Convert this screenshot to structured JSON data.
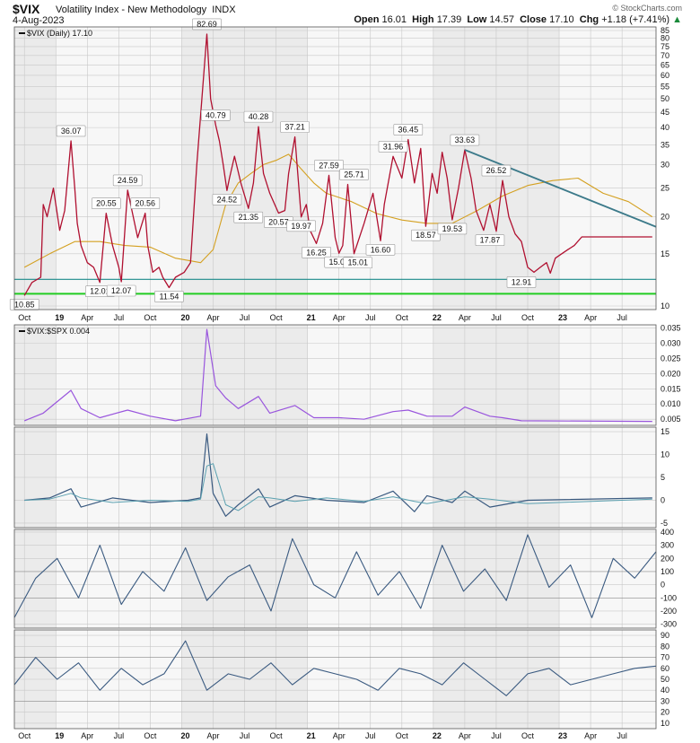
{
  "header": {
    "symbol": "$VIX",
    "name": "Volatility Index - New Methodology",
    "exchange": "INDX",
    "date": "4-Aug-2023",
    "open_label": "Open",
    "open": "16.01",
    "high_label": "High",
    "high": "17.39",
    "low_label": "Low",
    "low": "14.57",
    "close_label": "Close",
    "close": "17.10",
    "chg_label": "Chg",
    "chg": "+1.18 (+7.41%)",
    "watermark": "© StockCharts.com"
  },
  "colors": {
    "price": "#b01030",
    "ma": "#d4a020",
    "support": "#22cc22",
    "baseline": "#1a8a8a",
    "trend": "#3c7a8a",
    "ratio": "#9955dd",
    "osc": "#3a5a80",
    "osc2": "#5aa0b0",
    "grid": "#c8c8c8",
    "band": "#ebebeb"
  },
  "chart_data": [
    {
      "type": "line",
      "panel": "price",
      "legend": "$VIX (Daily) 17.10",
      "y_scale": "log",
      "ylim": [
        10,
        85
      ],
      "y_ticks": [
        10,
        15,
        20,
        25,
        30,
        35,
        40,
        45,
        50,
        55,
        60,
        65,
        70,
        75,
        80,
        85
      ],
      "series": [
        {
          "role": "price",
          "x": [
            2018.6,
            2018.66,
            2018.73,
            2018.75,
            2018.78,
            2018.83,
            2018.88,
            2018.92,
            2018.97,
            2019.0,
            2019.02,
            2019.05,
            2019.1,
            2019.15,
            2019.2,
            2019.25,
            2019.3,
            2019.35,
            2019.37,
            2019.42,
            2019.5,
            2019.56,
            2019.58,
            2019.62,
            2019.67,
            2019.7,
            2019.75,
            2019.8,
            2019.87,
            2019.92,
            2019.97,
            2020.05,
            2020.08,
            2020.12,
            2020.15,
            2020.18,
            2020.21,
            2020.23,
            2020.27,
            2020.32,
            2020.38,
            2020.42,
            2020.46,
            2020.5,
            2020.55,
            2020.62,
            2020.67,
            2020.7,
            2020.75,
            2020.8,
            2020.84,
            2020.87,
            2020.92,
            2020.97,
            2021.02,
            2021.07,
            2021.1,
            2021.13,
            2021.17,
            2021.22,
            2021.3,
            2021.37,
            2021.43,
            2021.46,
            2021.53,
            2021.6,
            2021.65,
            2021.7,
            2021.75,
            2021.79,
            2021.84,
            2021.88,
            2021.92,
            2021.96,
            2022.0,
            2022.05,
            2022.1,
            2022.15,
            2022.19,
            2022.25,
            2022.3,
            2022.35,
            2022.4,
            2022.45,
            2022.5,
            2022.55,
            2022.6,
            2022.65,
            2022.7,
            2022.75,
            2022.78,
            2022.82,
            2022.87,
            2022.92,
            2022.97,
            2023.03,
            2023.1,
            2023.17,
            2023.2,
            2023.25,
            2023.3,
            2023.38,
            2023.45,
            2023.5,
            2023.55,
            2023.59
          ],
          "values": [
            10.85,
            12.0,
            12.5,
            22.0,
            20.0,
            25.0,
            18.0,
            21.0,
            36.07,
            25.0,
            19.0,
            16.0,
            14.0,
            13.5,
            12.01,
            20.55,
            16.0,
            13.5,
            12.07,
            24.59,
            17.0,
            20.56,
            16.0,
            13.0,
            13.5,
            12.5,
            11.54,
            12.5,
            13.0,
            14.0,
            30.0,
            82.69,
            50.0,
            40.79,
            36.0,
            30.0,
            24.52,
            27.0,
            32.0,
            26.0,
            21.35,
            26.0,
            40.28,
            28.0,
            24.0,
            20.57,
            21.0,
            28.0,
            37.21,
            19.97,
            22.0,
            18.0,
            16.25,
            19.0,
            27.59,
            17.0,
            15.07,
            16.0,
            25.71,
            15.01,
            19.0,
            24.0,
            16.6,
            22.0,
            31.96,
            27.0,
            36.45,
            26.0,
            34.0,
            18.57,
            28.0,
            24.0,
            33.0,
            27.0,
            19.53,
            25.0,
            33.63,
            27.0,
            21.0,
            18.0,
            22.0,
            17.87,
            26.52,
            20.0,
            17.5,
            16.5,
            13.5,
            13.0,
            13.5,
            14.0,
            12.91,
            14.5,
            15.0,
            15.5,
            16.0,
            17.1,
            17.1,
            17.1,
            17.1,
            17.1,
            17.1,
            17.1,
            17.1,
            17.1,
            17.1,
            17.1
          ]
        },
        {
          "role": "moving-average",
          "x": [
            2018.6,
            2018.8,
            2019.0,
            2019.2,
            2019.4,
            2019.6,
            2019.8,
            2020.0,
            2020.1,
            2020.2,
            2020.3,
            2020.4,
            2020.5,
            2020.6,
            2020.7,
            2020.8,
            2020.9,
            2021.0,
            2021.2,
            2021.4,
            2021.6,
            2021.8,
            2022.0,
            2022.2,
            2022.4,
            2022.6,
            2022.8,
            2023.0,
            2023.2,
            2023.4,
            2023.59
          ],
          "values": [
            13.5,
            15.0,
            16.5,
            16.5,
            16.0,
            15.8,
            14.5,
            14.0,
            15.5,
            22.0,
            26.0,
            28.0,
            30.0,
            31.0,
            32.5,
            29.0,
            26.0,
            24.0,
            22.5,
            20.5,
            19.5,
            19.0,
            19.0,
            21.0,
            23.5,
            25.5,
            26.5,
            27.0,
            24.0,
            22.5,
            20.0
          ]
        }
      ],
      "annotations": [
        {
          "x": 2018.6,
          "value": "10.85",
          "pos": "below"
        },
        {
          "x": 2018.97,
          "value": "36.07",
          "pos": "above"
        },
        {
          "x": 2019.2,
          "value": "12.01",
          "pos": "below"
        },
        {
          "x": 2019.25,
          "value": "20.55",
          "pos": "above"
        },
        {
          "x": 2019.37,
          "value": "12.07",
          "pos": "below"
        },
        {
          "x": 2019.42,
          "value": "24.59",
          "pos": "above"
        },
        {
          "x": 2019.56,
          "value": "20.56",
          "pos": "above"
        },
        {
          "x": 2019.75,
          "value": "11.54",
          "pos": "below"
        },
        {
          "x": 2020.05,
          "value": "82.69",
          "pos": "above"
        },
        {
          "x": 2020.12,
          "value": "40.79",
          "pos": "above"
        },
        {
          "x": 2020.21,
          "value": "24.52",
          "pos": "below"
        },
        {
          "x": 2020.38,
          "value": "21.35",
          "pos": "below"
        },
        {
          "x": 2020.46,
          "value": "40.28",
          "pos": "above"
        },
        {
          "x": 2020.62,
          "value": "20.57",
          "pos": "below"
        },
        {
          "x": 2020.75,
          "value": "37.21",
          "pos": "above"
        },
        {
          "x": 2020.8,
          "value": "19.97",
          "pos": "below"
        },
        {
          "x": 2020.92,
          "value": "16.25",
          "pos": "below"
        },
        {
          "x": 2021.02,
          "value": "27.59",
          "pos": "above"
        },
        {
          "x": 2021.1,
          "value": "15.07",
          "pos": "below"
        },
        {
          "x": 2021.22,
          "value": "25.71",
          "pos": "above"
        },
        {
          "x": 2021.25,
          "value": "15.01",
          "pos": "below"
        },
        {
          "x": 2021.43,
          "value": "16.60",
          "pos": "below"
        },
        {
          "x": 2021.53,
          "value": "31.96",
          "pos": "above"
        },
        {
          "x": 2021.65,
          "value": "36.45",
          "pos": "above"
        },
        {
          "x": 2021.79,
          "value": "18.57",
          "pos": "below"
        },
        {
          "x": 2022.0,
          "value": "19.53",
          "pos": "below"
        },
        {
          "x": 2022.1,
          "value": "33.63",
          "pos": "above"
        },
        {
          "x": 2022.3,
          "value": "17.87",
          "pos": "below"
        },
        {
          "x": 2022.35,
          "value": "26.52",
          "pos": "above"
        },
        {
          "x": 2022.55,
          "value": "12.91",
          "pos": "below"
        }
      ],
      "x_ticks": [
        "Oct",
        "19",
        "Apr",
        "Jul",
        "Oct",
        "20",
        "Apr",
        "Jul",
        "Oct",
        "21",
        "Apr",
        "Jul",
        "Oct",
        "22",
        "Apr",
        "Jul",
        "Oct",
        "23",
        "Apr",
        "Jul"
      ],
      "x_tick_pos": [
        2018.6,
        2018.85,
        2019.1,
        2019.35,
        2019.6,
        2019.85,
        2020.1,
        2020.35,
        2020.6,
        2020.85,
        2021.1,
        2021.35,
        2021.6,
        2021.85,
        2022.1,
        2022.35,
        2022.6,
        2022.85,
        2023.1,
        2023.35
      ],
      "x_range": [
        2018.52,
        2023.62
      ]
    },
    {
      "type": "line",
      "panel": "ratio",
      "legend": "$VIX:$SPX 0.004",
      "ylim": [
        0.003,
        0.036
      ],
      "y_ticks": [
        0.005,
        0.01,
        0.015,
        0.02,
        0.025,
        0.03,
        0.035
      ],
      "x": [
        2018.6,
        2018.75,
        2018.97,
        2019.05,
        2019.2,
        2019.42,
        2019.6,
        2019.8,
        2020.0,
        2020.05,
        2020.12,
        2020.2,
        2020.3,
        2020.46,
        2020.55,
        2020.75,
        2020.9,
        2021.1,
        2021.3,
        2021.53,
        2021.65,
        2021.8,
        2022.0,
        2022.1,
        2022.3,
        2022.4,
        2022.55,
        2023.59
      ],
      "values": [
        0.0045,
        0.007,
        0.0145,
        0.0085,
        0.0055,
        0.008,
        0.006,
        0.0045,
        0.006,
        0.0345,
        0.016,
        0.012,
        0.0085,
        0.0125,
        0.007,
        0.0095,
        0.0055,
        0.0055,
        0.005,
        0.0075,
        0.008,
        0.006,
        0.006,
        0.009,
        0.006,
        0.0055,
        0.0045,
        0.0043
      ]
    },
    {
      "type": "line",
      "panel": "oscillator-1",
      "ylim": [
        -6,
        16
      ],
      "y_ticks": [
        -5,
        0,
        5,
        10,
        15
      ],
      "x": [
        2018.6,
        2018.8,
        2018.97,
        2019.05,
        2019.3,
        2019.6,
        2019.9,
        2020.0,
        2020.05,
        2020.1,
        2020.2,
        2020.3,
        2020.46,
        2020.55,
        2020.75,
        2021.0,
        2021.3,
        2021.53,
        2021.7,
        2021.8,
        2022.0,
        2022.1,
        2022.3,
        2022.6,
        2023.59
      ],
      "values": [
        0,
        0.5,
        2.5,
        -1.5,
        0.5,
        -0.5,
        0,
        0.5,
        14.5,
        1.5,
        -3.5,
        -1,
        2.5,
        -1.5,
        1,
        0,
        -0.5,
        2,
        -2.5,
        1,
        -0.5,
        2,
        -1.5,
        0,
        0.5
      ]
    },
    {
      "type": "line",
      "panel": "oscillator-2",
      "ylim": [
        -330,
        420
      ],
      "y_ticks": [
        -300,
        -200,
        -100,
        0,
        100,
        200,
        300,
        400
      ],
      "series": [
        {
          "role": "oscillator",
          "values": [
            -250,
            50,
            200,
            -100,
            300,
            -150,
            100,
            -50,
            280,
            -120,
            60,
            150,
            -200,
            350,
            0,
            -100,
            250,
            -80,
            100,
            -180,
            300,
            -50,
            120,
            -120,
            380,
            -20,
            150,
            -250,
            200,
            50,
            250
          ]
        }
      ]
    },
    {
      "type": "line",
      "panel": "oscillator-3",
      "ylim": [
        5,
        95
      ],
      "y_ticks": [
        10,
        20,
        30,
        40,
        50,
        60,
        70,
        80,
        90
      ],
      "series": [
        {
          "role": "oscillator",
          "values": [
            45,
            70,
            50,
            65,
            40,
            60,
            45,
            55,
            85,
            40,
            55,
            50,
            65,
            45,
            60,
            55,
            50,
            40,
            60,
            55,
            45,
            65,
            50,
            35,
            55,
            60,
            45,
            50,
            55,
            60,
            62
          ]
        }
      ]
    }
  ]
}
